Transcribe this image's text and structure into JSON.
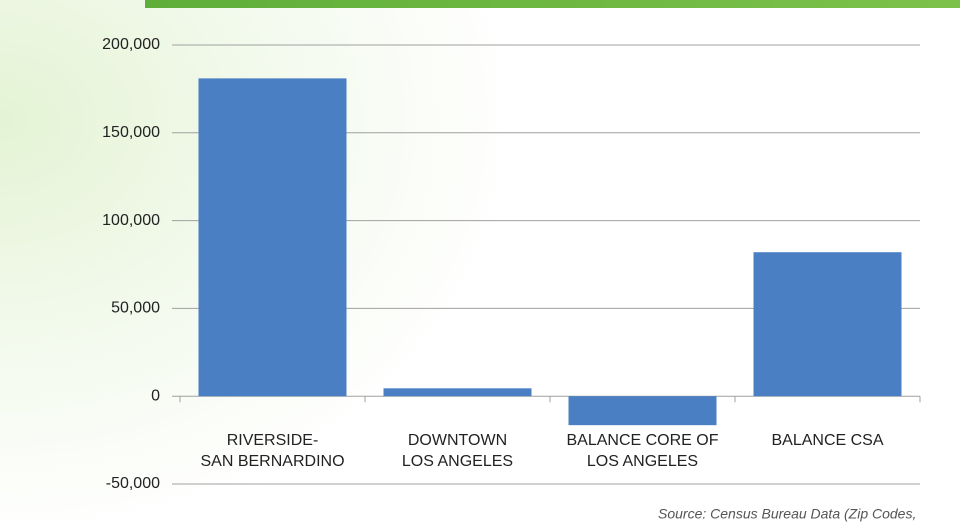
{
  "chart_data": {
    "type": "bar",
    "categories": [
      [
        "RIVERSIDE-",
        "SAN BERNARDINO"
      ],
      [
        "DOWNTOWN",
        "LOS ANGELES"
      ],
      [
        "BALANCE CORE OF",
        "LOS ANGELES"
      ],
      [
        "BALANCE CSA"
      ]
    ],
    "values": [
      181000,
      4500,
      -16500,
      82000
    ],
    "color": "#4a80c3",
    "ylim": [
      -50000,
      200000
    ],
    "yticks": [
      {
        "value": -50000,
        "label": "-50,000"
      },
      0,
      {
        "value": 50000,
        "label": "50,000"
      },
      {
        "value": 100000,
        "label": "100,000"
      },
      {
        "value": 150000,
        "label": "150,000"
      },
      {
        "value": 200000,
        "label": "200,000"
      }
    ],
    "grid": true,
    "source": "Source: Census Bureau Data (Zip Codes,"
  }
}
